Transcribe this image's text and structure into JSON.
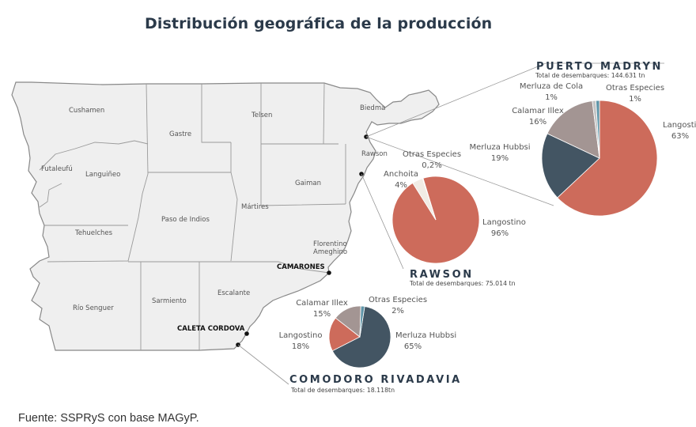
{
  "title": "Distribución geográfica de la producción",
  "source": "Fuente: SSPRyS con base MAGyP.",
  "colors": {
    "Langostino": "#cd6b5b",
    "Merluza Hubbsi": "#435563",
    "Calamar Illex": "#a39593",
    "Merluza de Cola": "#c4c4c4",
    "Otras Especies": "#5f95a8",
    "Anchoita": "#f1ece5",
    "map_fill": "#efefef",
    "map_stroke": "#888888"
  },
  "map": {
    "departments": [
      "Cushamen",
      "Futaleufú",
      "Languiñeo",
      "Gastre",
      "Telsen",
      "Biedma",
      "Rawson",
      "Gaiman",
      "Mártires",
      "Paso de Indios",
      "Tehuelches",
      "Florentino Ameghino",
      "Río Senguer",
      "Sarmiento",
      "Escalante"
    ],
    "cities": [
      "CAMARONES",
      "CALETA CORDOVA"
    ]
  },
  "chart_data": [
    {
      "type": "pie",
      "title": "PUERTO MADRYN",
      "subtitle": "Total de desembarques: 144.631 tn",
      "slices": [
        {
          "label": "Langostino",
          "value": 63,
          "pct": "63%"
        },
        {
          "label": "Merluza Hubbsi",
          "value": 19,
          "pct": "19%"
        },
        {
          "label": "Calamar Illex",
          "value": 16,
          "pct": "16%"
        },
        {
          "label": "Merluza de Cola",
          "value": 1,
          "pct": "1%"
        },
        {
          "label": "Otras Especies",
          "value": 1,
          "pct": "1%"
        }
      ]
    },
    {
      "type": "pie",
      "title": "RAWSON",
      "subtitle": "Total de desembarques: 75.014 tn",
      "slices": [
        {
          "label": "Langostino",
          "value": 96,
          "pct": "96%"
        },
        {
          "label": "Anchoita",
          "value": 4,
          "pct": "4%"
        },
        {
          "label": "Otras Especies",
          "value": 0.2,
          "pct": "0,2%"
        }
      ]
    },
    {
      "type": "pie",
      "title": "COMODORO RIVADAVIA",
      "subtitle": "Total de desembarques: 18.118tn",
      "slices": [
        {
          "label": "Merluza Hubbsi",
          "value": 65,
          "pct": "65%"
        },
        {
          "label": "Langostino",
          "value": 18,
          "pct": "18%"
        },
        {
          "label": "Calamar Illex",
          "value": 15,
          "pct": "15%"
        },
        {
          "label": "Otras Especies",
          "value": 2,
          "pct": "2%"
        }
      ]
    }
  ]
}
